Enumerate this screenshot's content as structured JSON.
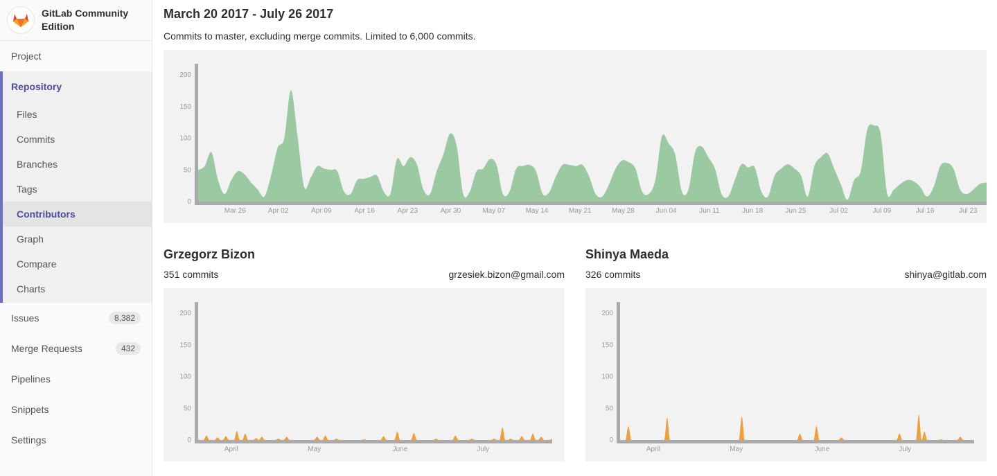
{
  "sidebar": {
    "brand": "GitLab Community Edition",
    "project": "Project",
    "repository": {
      "label": "Repository",
      "items": [
        "Files",
        "Commits",
        "Branches",
        "Tags",
        "Contributors",
        "Graph",
        "Compare",
        "Charts"
      ],
      "active": "Contributors"
    },
    "items": [
      {
        "label": "Issues",
        "badge": "8,382"
      },
      {
        "label": "Merge Requests",
        "badge": "432"
      },
      {
        "label": "Pipelines"
      },
      {
        "label": "Snippets"
      },
      {
        "label": "Settings"
      }
    ]
  },
  "header": {
    "title": "March 20 2017 - July 26 2017",
    "subtitle": "Commits to master, excluding merge commits. Limited to 6,000 commits."
  },
  "colors": {
    "main_area": "#9bcaa2",
    "contributor_area": "#f0a03a",
    "axis": "#aaaaaa",
    "accent": "#4b4ba3"
  },
  "chart_data": [
    {
      "type": "area",
      "start_date": "2017-03-20",
      "end_date": "2017-07-26",
      "ylim": [
        0,
        220
      ],
      "yticks": [
        "0",
        "50",
        "100",
        "150",
        "200"
      ],
      "xticks": [
        "Mar 26",
        "Apr 02",
        "Apr 09",
        "Apr 16",
        "Apr 23",
        "Apr 30",
        "May 07",
        "May 14",
        "May 21",
        "May 28",
        "Jun 04",
        "Jun 11",
        "Jun 18",
        "Jun 25",
        "Jul 02",
        "Jul 09",
        "Jul 16",
        "Jul 23"
      ],
      "values": [
        50,
        56,
        78,
        34,
        12,
        34,
        48,
        43,
        30,
        19,
        8,
        41,
        85,
        100,
        176,
        103,
        23,
        38,
        56,
        52,
        50,
        48,
        16,
        12,
        34,
        36,
        39,
        41,
        16,
        12,
        67,
        56,
        70,
        59,
        19,
        12,
        48,
        74,
        107,
        89,
        12,
        16,
        48,
        52,
        67,
        59,
        12,
        16,
        52,
        56,
        58,
        48,
        12,
        15,
        40,
        58,
        58,
        56,
        58,
        40,
        12,
        8,
        27,
        52,
        65,
        62,
        52,
        16,
        12,
        34,
        103,
        92,
        74,
        16,
        19,
        78,
        87,
        70,
        52,
        12,
        8,
        34,
        59,
        54,
        54,
        16,
        8,
        41,
        52,
        59,
        52,
        41,
        8,
        56,
        70,
        76,
        52,
        27,
        3,
        34,
        48,
        114,
        120,
        107,
        12,
        19,
        28,
        34,
        32,
        23,
        8,
        23,
        56,
        61,
        52,
        19,
        12,
        19,
        28,
        30
      ]
    },
    {
      "type": "area",
      "name": "Grzegorz Bizon",
      "start_date": "2017-03-20",
      "end_date": "2017-07-26",
      "ylim": [
        0,
        220
      ],
      "yticks": [
        "0",
        "50",
        "100",
        "150",
        "200"
      ],
      "xticks": [
        "April",
        "May",
        "June",
        "July"
      ],
      "points": [
        [
          "2017-03-23",
          7
        ],
        [
          "2017-03-27",
          4
        ],
        [
          "2017-03-30",
          6
        ],
        [
          "2017-04-03",
          14
        ],
        [
          "2017-04-06",
          10
        ],
        [
          "2017-04-10",
          3
        ],
        [
          "2017-04-12",
          5
        ],
        [
          "2017-04-18",
          2
        ],
        [
          "2017-04-21",
          5
        ],
        [
          "2017-05-02",
          5
        ],
        [
          "2017-05-05",
          7
        ],
        [
          "2017-05-09",
          2
        ],
        [
          "2017-05-19",
          1
        ],
        [
          "2017-05-26",
          6
        ],
        [
          "2017-05-31",
          13
        ],
        [
          "2017-06-06",
          11
        ],
        [
          "2017-06-14",
          2
        ],
        [
          "2017-06-21",
          7
        ],
        [
          "2017-06-27",
          2
        ],
        [
          "2017-07-05",
          2
        ],
        [
          "2017-07-08",
          20
        ],
        [
          "2017-07-11",
          2
        ],
        [
          "2017-07-15",
          6
        ],
        [
          "2017-07-19",
          10
        ],
        [
          "2017-07-22",
          5
        ],
        [
          "2017-07-26",
          2
        ]
      ]
    },
    {
      "type": "area",
      "name": "Shinya Maeda",
      "start_date": "2017-03-20",
      "end_date": "2017-07-26",
      "ylim": [
        0,
        220
      ],
      "yticks": [
        "0",
        "50",
        "100",
        "150",
        "200"
      ],
      "xticks": [
        "April",
        "May",
        "June",
        "July"
      ],
      "points": [
        [
          "2017-03-23",
          22
        ],
        [
          "2017-04-06",
          35
        ],
        [
          "2017-05-03",
          37
        ],
        [
          "2017-05-24",
          10
        ],
        [
          "2017-05-30",
          22
        ],
        [
          "2017-06-08",
          4
        ],
        [
          "2017-06-29",
          10
        ],
        [
          "2017-07-06",
          40
        ],
        [
          "2017-07-08",
          13
        ],
        [
          "2017-07-14",
          1
        ],
        [
          "2017-07-21",
          5
        ]
      ]
    }
  ],
  "contributors": [
    {
      "name": "Grzegorz Bizon",
      "commits": "351 commits",
      "email": "grzesiek.bizon@gmail.com"
    },
    {
      "name": "Shinya Maeda",
      "commits": "326 commits",
      "email": "shinya@gitlab.com"
    }
  ]
}
